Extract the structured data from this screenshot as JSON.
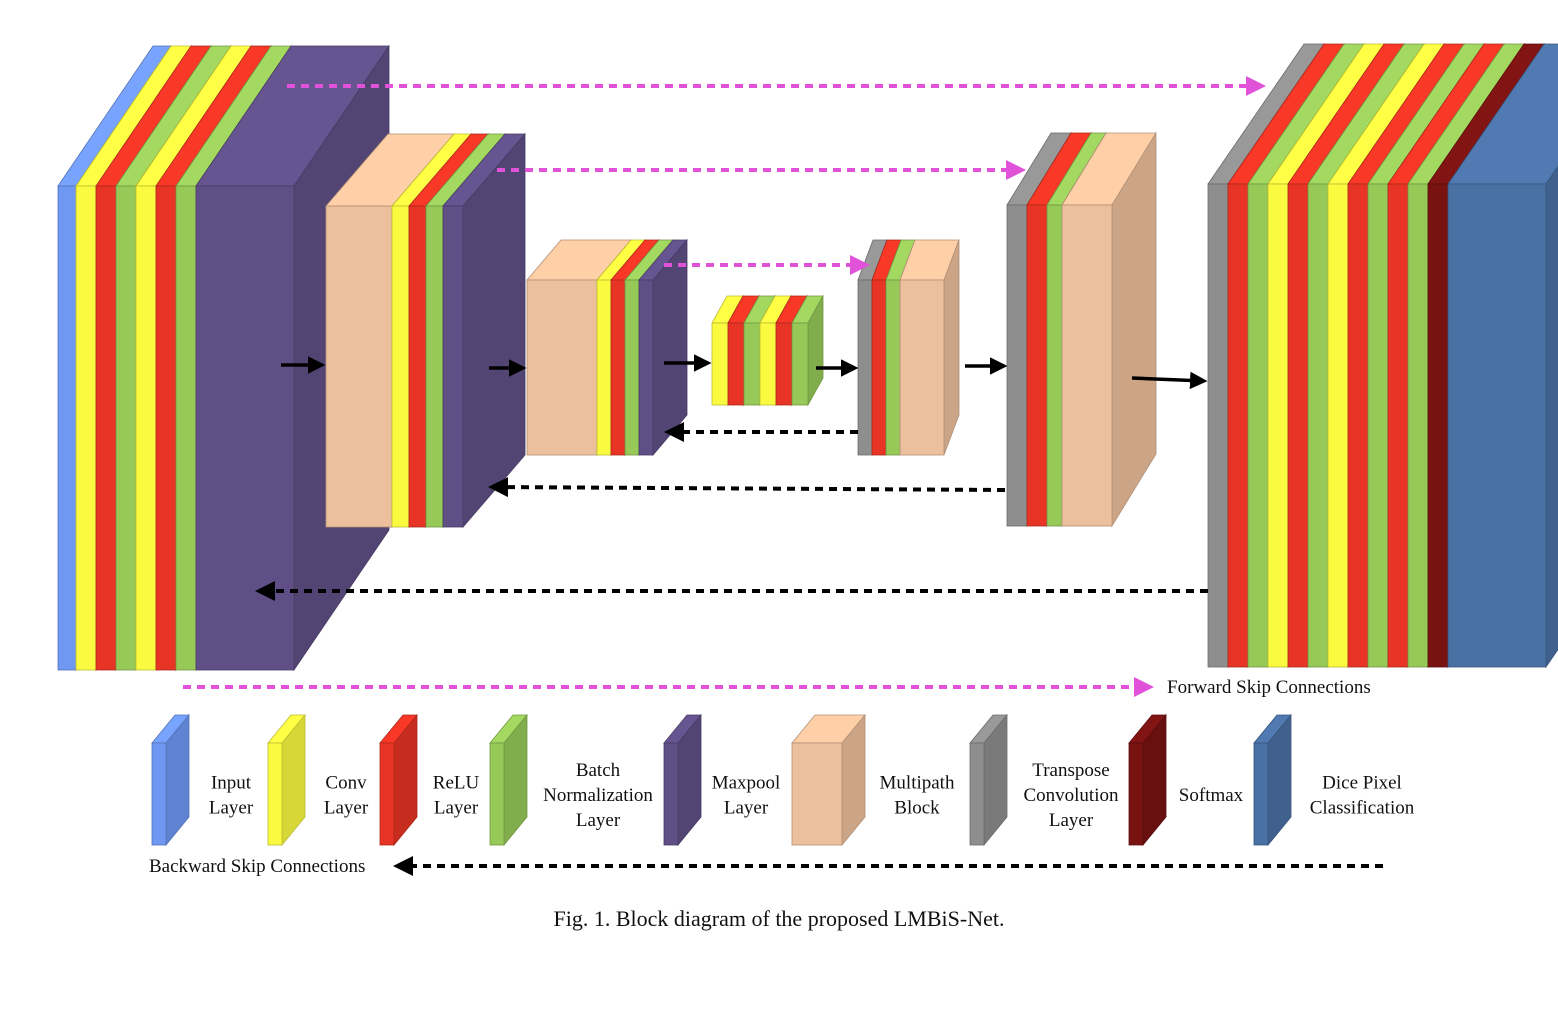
{
  "caption": "Fig. 1.  Block diagram of the proposed LMBiS-Net.",
  "colors": {
    "input": "#6f98f3",
    "conv": "#fafa40",
    "relu": "#e73424",
    "batchnorm": "#97c959",
    "maxpool": "#5f4f86",
    "multipath": "#ecc09c",
    "transpose": "#8e8e8e",
    "softmax": "#781312",
    "dice": "#4a71a4",
    "forward_arrow": "#e053d8",
    "backward_arrow": "#000000"
  },
  "legend": {
    "forward": "Forward Skip Connections",
    "backward": "Backward Skip Connections",
    "items": [
      {
        "key": "input",
        "lines": [
          "Input",
          "Layer"
        ]
      },
      {
        "key": "conv",
        "lines": [
          "Conv",
          "Layer"
        ]
      },
      {
        "key": "relu",
        "lines": [
          "ReLU",
          "Layer"
        ]
      },
      {
        "key": "batchnorm",
        "lines": [
          "Batch",
          "Normalization",
          "Layer"
        ]
      },
      {
        "key": "maxpool",
        "lines": [
          "Maxpool",
          "Layer"
        ]
      },
      {
        "key": "multipath",
        "lines": [
          "Multipath",
          "Block"
        ]
      },
      {
        "key": "transpose",
        "lines": [
          "Transpose",
          "Convolution",
          "Layer"
        ]
      },
      {
        "key": "softmax",
        "lines": [
          "Softmax"
        ]
      },
      {
        "key": "dice",
        "lines": [
          "Dice Pixel",
          "Classification"
        ]
      }
    ]
  },
  "stages": [
    {
      "id": "encoder-1",
      "layers": [
        "input",
        "conv",
        "relu",
        "batchnorm",
        "conv",
        "relu",
        "batchnorm",
        "maxpool"
      ]
    },
    {
      "id": "encoder-2",
      "layers": [
        "multipath",
        "conv",
        "relu",
        "batchnorm",
        "maxpool"
      ]
    },
    {
      "id": "encoder-3",
      "layers": [
        "multipath",
        "conv",
        "relu",
        "batchnorm",
        "maxpool"
      ]
    },
    {
      "id": "bottleneck",
      "layers": [
        "conv",
        "relu",
        "batchnorm",
        "conv",
        "relu",
        "batchnorm"
      ]
    },
    {
      "id": "decoder-3",
      "layers": [
        "transpose",
        "relu",
        "batchnorm",
        "multipath"
      ]
    },
    {
      "id": "decoder-2",
      "layers": [
        "transpose",
        "relu",
        "batchnorm",
        "multipath"
      ]
    },
    {
      "id": "decoder-1",
      "layers": [
        "transpose",
        "relu",
        "batchnorm",
        "conv",
        "relu",
        "batchnorm",
        "conv",
        "relu",
        "batchnorm",
        "relu",
        "batchnorm",
        "softmax",
        "dice"
      ]
    }
  ]
}
